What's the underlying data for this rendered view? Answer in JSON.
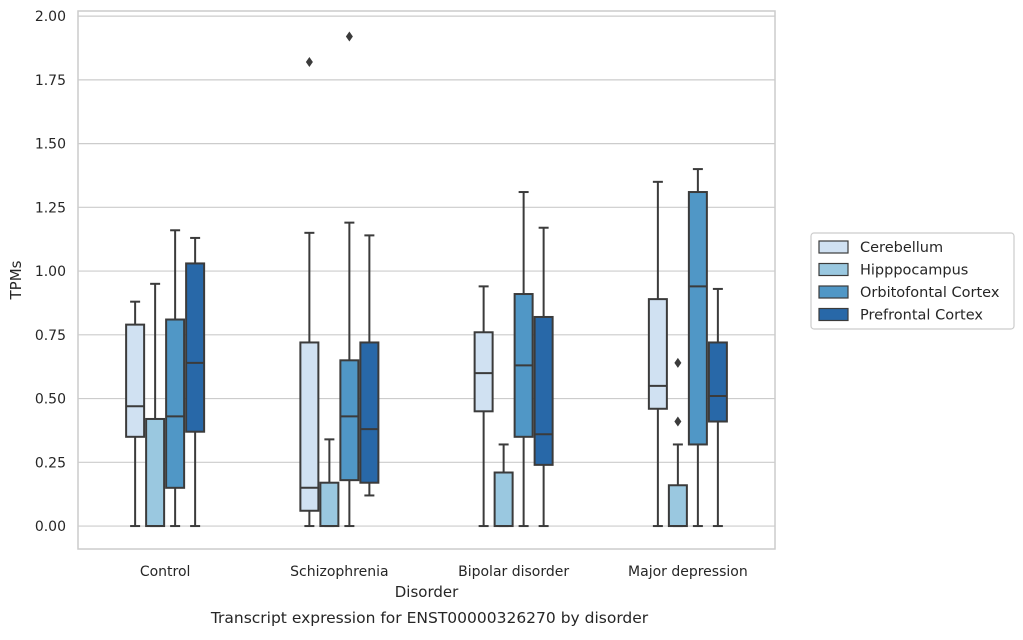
{
  "chart_data": {
    "type": "box",
    "ylabel": "TPMs",
    "xlabel": "Disorder",
    "caption": "Transcript expression for ENST00000326270 by disorder",
    "ylim": [
      -0.09,
      2.02
    ],
    "yticks": [
      "0.00",
      "0.25",
      "0.50",
      "0.75",
      "1.00",
      "1.25",
      "1.50",
      "1.75",
      "2.00"
    ],
    "grid": true,
    "legend_position": "right",
    "categories": [
      "Control",
      "Schizophrenia",
      "Bipolar disorder",
      "Major depression"
    ],
    "series": [
      {
        "name": "Cerebellum",
        "color": "#d0e1f2",
        "boxes": [
          {
            "min": 0.0,
            "q1": 0.35,
            "median": 0.47,
            "q3": 0.79,
            "max": 0.88,
            "outliers": []
          },
          {
            "min": 0.0,
            "q1": 0.06,
            "median": 0.15,
            "q3": 0.72,
            "max": 1.15,
            "outliers": [
              1.82
            ]
          },
          {
            "min": 0.0,
            "q1": 0.45,
            "median": 0.6,
            "q3": 0.76,
            "max": 0.94,
            "outliers": []
          },
          {
            "min": 0.0,
            "q1": 0.46,
            "median": 0.55,
            "q3": 0.89,
            "max": 1.35,
            "outliers": []
          }
        ]
      },
      {
        "name": "Hipppocampus",
        "color": "#9ac8e0",
        "boxes": [
          {
            "min": 0.0,
            "q1": 0.0,
            "median": 0.0,
            "q3": 0.42,
            "max": 0.95,
            "outliers": []
          },
          {
            "min": 0.0,
            "q1": 0.0,
            "median": 0.0,
            "q3": 0.17,
            "max": 0.34,
            "outliers": []
          },
          {
            "min": 0.0,
            "q1": 0.0,
            "median": 0.0,
            "q3": 0.21,
            "max": 0.32,
            "outliers": []
          },
          {
            "min": 0.0,
            "q1": 0.0,
            "median": 0.0,
            "q3": 0.16,
            "max": 0.32,
            "outliers": [
              0.64,
              0.41
            ]
          }
        ]
      },
      {
        "name": "Orbitofontal Cortex",
        "color": "#5097c6",
        "boxes": [
          {
            "min": 0.0,
            "q1": 0.15,
            "median": 0.43,
            "q3": 0.81,
            "max": 1.16,
            "outliers": []
          },
          {
            "min": 0.0,
            "q1": 0.18,
            "median": 0.43,
            "q3": 0.65,
            "max": 1.19,
            "outliers": [
              1.92
            ]
          },
          {
            "min": 0.0,
            "q1": 0.35,
            "median": 0.63,
            "q3": 0.91,
            "max": 1.31,
            "outliers": []
          },
          {
            "min": 0.0,
            "q1": 0.32,
            "median": 0.94,
            "q3": 1.31,
            "max": 1.4,
            "outliers": []
          }
        ]
      },
      {
        "name": "Prefrontal Cortex",
        "color": "#2868a8",
        "boxes": [
          {
            "min": 0.0,
            "q1": 0.37,
            "median": 0.64,
            "q3": 1.03,
            "max": 1.13,
            "outliers": []
          },
          {
            "min": 0.12,
            "q1": 0.17,
            "median": 0.38,
            "q3": 0.72,
            "max": 1.14,
            "outliers": []
          },
          {
            "min": 0.0,
            "q1": 0.24,
            "median": 0.36,
            "q3": 0.82,
            "max": 1.17,
            "outliers": []
          },
          {
            "min": 0.0,
            "q1": 0.41,
            "median": 0.51,
            "q3": 0.72,
            "max": 0.93,
            "outliers": []
          }
        ]
      }
    ]
  }
}
